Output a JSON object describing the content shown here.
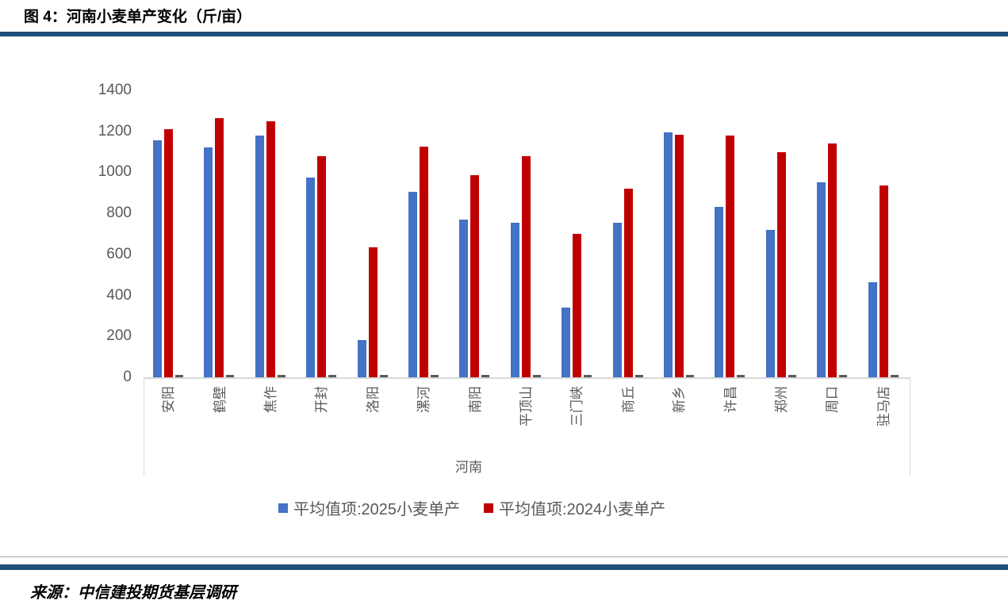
{
  "page": {
    "title": "图 4：河南小麦单产变化（斤/亩）",
    "source": "来源：中信建投期货基层调研"
  },
  "colors": {
    "rule_blue": "#1F4E79",
    "thin_rule_gray": "#A6A6A6",
    "axis_text": "#595959",
    "axis_line": "#D9D9D9",
    "series_2025_blue": "#4472C4",
    "series_2024_red": "#C00000",
    "baseline_dash_gray": "#595959"
  },
  "chart_data": {
    "type": "bar",
    "title": "河南小麦单产变化（斤/亩）",
    "categories": [
      "安阳",
      "鹤壁",
      "焦作",
      "开封",
      "洛阳",
      "漯河",
      "南阳",
      "平顶山",
      "三门峡",
      "商丘",
      "新乡",
      "许昌",
      "郑州",
      "周口",
      "驻马店"
    ],
    "series": [
      {
        "name": "平均值项:2025小麦单产",
        "color": "#4472C4",
        "values": [
          1155,
          1120,
          1180,
          975,
          180,
          905,
          770,
          755,
          340,
          755,
          1195,
          830,
          720,
          950,
          465
        ]
      },
      {
        "name": "平均值项:2024小麦单产",
        "color": "#C00000",
        "values": [
          1210,
          1265,
          1250,
          1080,
          635,
          1125,
          985,
          1080,
          700,
          920,
          1185,
          1180,
          1100,
          1140,
          935
        ]
      }
    ],
    "baseline_dash_series": {
      "description": "tiny dark-gray dash at zero line after each group",
      "color": "#595959"
    },
    "group_label": "河南",
    "xlabel": "河南",
    "ylabel": "",
    "ylim": [
      0,
      1400
    ],
    "yticks": [
      0,
      200,
      400,
      600,
      800,
      1000,
      1200,
      1400
    ],
    "grid": false,
    "legend_position": "bottom"
  }
}
